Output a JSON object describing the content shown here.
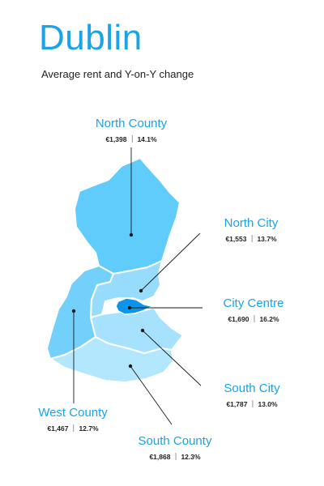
{
  "title": "Dublin",
  "subtitle": "Average rent and Y-on-Y change",
  "colors": {
    "accent": "#1aa3e8",
    "north_county": "#5fccfb",
    "north_city": "#97dcfd",
    "city_centre": "#0c94ea",
    "south_city": "#a6e2fd",
    "west_county": "#72d0fb",
    "south_county": "#b3e7fd",
    "boundary": "#ffffff",
    "leader": "#1a1a1a"
  },
  "regions": [
    {
      "id": "north_county",
      "name": "North County",
      "rent": "€1,398",
      "change": "14.1%"
    },
    {
      "id": "north_city",
      "name": "North City",
      "rent": "€1,553",
      "change": "13.7%"
    },
    {
      "id": "city_centre",
      "name": "City Centre",
      "rent": "€1,690",
      "change": "16.2%"
    },
    {
      "id": "south_city",
      "name": "South City",
      "rent": "€1,787",
      "change": "13.0%"
    },
    {
      "id": "west_county",
      "name": "West County",
      "rent": "€1,467",
      "change": "12.7%"
    },
    {
      "id": "south_county",
      "name": "South County",
      "rent": "€1,868",
      "change": "12.3%"
    }
  ]
}
